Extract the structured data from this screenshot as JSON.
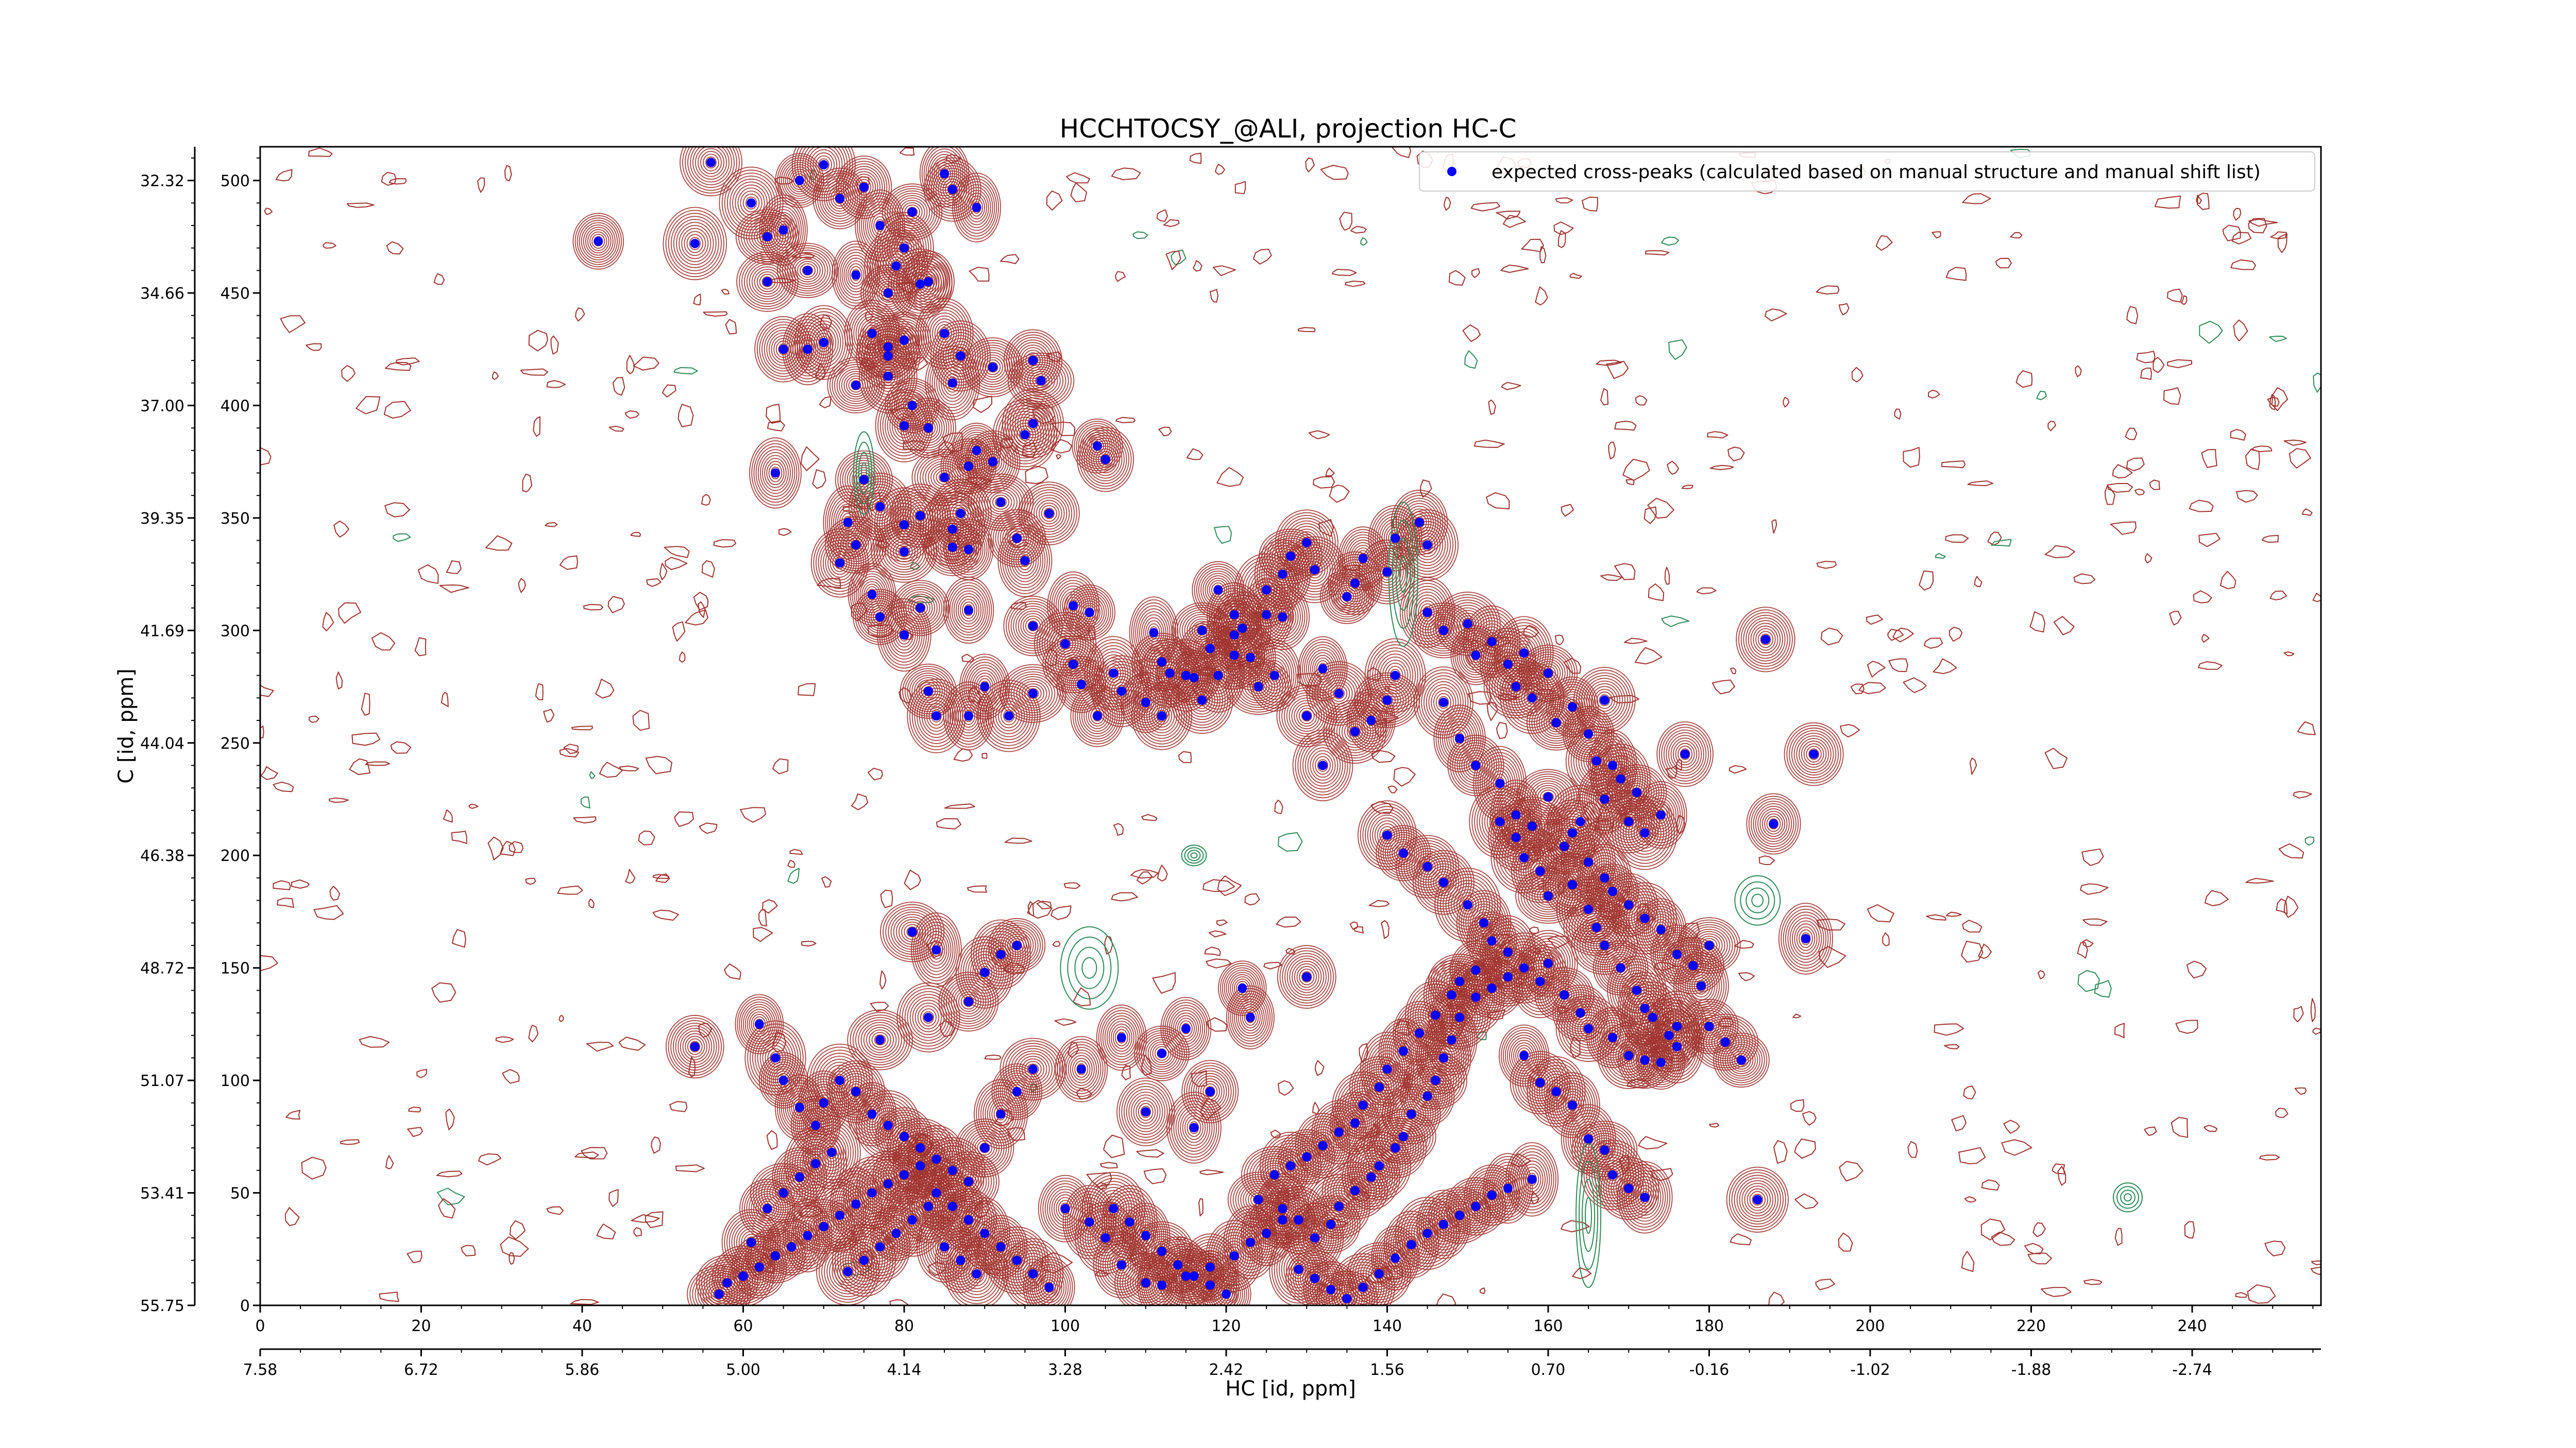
{
  "chart_data": {
    "type": "contour",
    "title": "HCCHTOCSY_@ALI, projection HC-C",
    "xlabel": "HC [id, ppm]",
    "ylabel": "C [id, ppm]",
    "x_index_range": [
      0,
      256
    ],
    "y_index_range": [
      0,
      515
    ],
    "x_index_ticks": [
      0,
      20,
      40,
      60,
      80,
      100,
      120,
      140,
      160,
      180,
      200,
      220,
      240
    ],
    "y_index_ticks": [
      0,
      50,
      100,
      150,
      200,
      250,
      300,
      350,
      400,
      450,
      500
    ],
    "x_ppm_ticks": [
      "7.58",
      "6.72",
      "5.86",
      "5.00",
      "4.14",
      "3.28",
      "2.42",
      "1.56",
      "0.70",
      "-0.16",
      "-1.02",
      "-1.88",
      "-2.74"
    ],
    "y_ppm_ticks": [
      "55.75",
      "53.41",
      "51.07",
      "48.72",
      "46.38",
      "44.04",
      "41.69",
      "39.35",
      "37.00",
      "34.66",
      "32.32"
    ],
    "legend": {
      "position": "top-right",
      "entries": [
        {
          "label": "expected cross-peaks (calculated based on manual structure and manual shift list)",
          "color": "#0000ff",
          "marker": "circle"
        }
      ]
    },
    "colors": {
      "positive_contour": "#a0322d",
      "negative_contour": "#2e8b57",
      "peak_marker": "#0000ff"
    },
    "peaks": [
      [
        42,
        473
      ],
      [
        54,
        472
      ],
      [
        56,
        508
      ],
      [
        61,
        490
      ],
      [
        63,
        475
      ],
      [
        65,
        478
      ],
      [
        67,
        500
      ],
      [
        70,
        507
      ],
      [
        72,
        492
      ],
      [
        75,
        497
      ],
      [
        77,
        480
      ],
      [
        79,
        462
      ],
      [
        80,
        470
      ],
      [
        81,
        486
      ],
      [
        85,
        503
      ],
      [
        86,
        496
      ],
      [
        89,
        488
      ],
      [
        63,
        455
      ],
      [
        68,
        460
      ],
      [
        74,
        458
      ],
      [
        78,
        450
      ],
      [
        82,
        454
      ],
      [
        65,
        425
      ],
      [
        68,
        425
      ],
      [
        70,
        428
      ],
      [
        76,
        432
      ],
      [
        78,
        422
      ],
      [
        78,
        426
      ],
      [
        80,
        429
      ],
      [
        83,
        455
      ],
      [
        85,
        432
      ],
      [
        87,
        422
      ],
      [
        74,
        409
      ],
      [
        78,
        413
      ],
      [
        81,
        400
      ],
      [
        83,
        390
      ],
      [
        86,
        410
      ],
      [
        91,
        417
      ],
      [
        96,
        420
      ],
      [
        97,
        411
      ],
      [
        80,
        391
      ],
      [
        88,
        373
      ],
      [
        89,
        380
      ],
      [
        91,
        375
      ],
      [
        95,
        387
      ],
      [
        96,
        392
      ],
      [
        104,
        382
      ],
      [
        105,
        376
      ],
      [
        64,
        370
      ],
      [
        75,
        367
      ],
      [
        77,
        355
      ],
      [
        80,
        347
      ],
      [
        82,
        351
      ],
      [
        86,
        345
      ],
      [
        87,
        352
      ],
      [
        73,
        348
      ],
      [
        85,
        368
      ],
      [
        92,
        357
      ],
      [
        95,
        331
      ],
      [
        80,
        335
      ],
      [
        86,
        337
      ],
      [
        88,
        336
      ],
      [
        94,
        341
      ],
      [
        98,
        352
      ],
      [
        72,
        330
      ],
      [
        74,
        338
      ],
      [
        76,
        316
      ],
      [
        77,
        306
      ],
      [
        80,
        298
      ],
      [
        82,
        310
      ],
      [
        88,
        309
      ],
      [
        96,
        302
      ],
      [
        101,
        311
      ],
      [
        103,
        308
      ],
      [
        106,
        281
      ],
      [
        111,
        299
      ],
      [
        112,
        286
      ],
      [
        113,
        281
      ],
      [
        117,
        300
      ],
      [
        118,
        292
      ],
      [
        121,
        298
      ],
      [
        123,
        288
      ],
      [
        124,
        275
      ],
      [
        126,
        280
      ],
      [
        130,
        262
      ],
      [
        132,
        240
      ],
      [
        119,
        318
      ],
      [
        121,
        307
      ],
      [
        122,
        301
      ],
      [
        125,
        307
      ],
      [
        127,
        306
      ],
      [
        132,
        283
      ],
      [
        134,
        272
      ],
      [
        136,
        255
      ],
      [
        138,
        260
      ],
      [
        140,
        269
      ],
      [
        141,
        280
      ],
      [
        83,
        273
      ],
      [
        84,
        262
      ],
      [
        88,
        262
      ],
      [
        90,
        275
      ],
      [
        93,
        262
      ],
      [
        96,
        272
      ],
      [
        100,
        294
      ],
      [
        101,
        285
      ],
      [
        102,
        276
      ],
      [
        104,
        262
      ],
      [
        107,
        273
      ],
      [
        110,
        268
      ],
      [
        112,
        262
      ],
      [
        115,
        280
      ],
      [
        116,
        279
      ],
      [
        117,
        269
      ],
      [
        119,
        280
      ],
      [
        121,
        289
      ],
      [
        125,
        318
      ],
      [
        127,
        325
      ],
      [
        128,
        333
      ],
      [
        130,
        339
      ],
      [
        131,
        327
      ],
      [
        135,
        315
      ],
      [
        136,
        321
      ],
      [
        137,
        332
      ],
      [
        140,
        326
      ],
      [
        141,
        341
      ],
      [
        144,
        348
      ],
      [
        145,
        338
      ],
      [
        145,
        308
      ],
      [
        147,
        300
      ],
      [
        150,
        303
      ],
      [
        151,
        289
      ],
      [
        153,
        295
      ],
      [
        155,
        285
      ],
      [
        156,
        275
      ],
      [
        157,
        290
      ],
      [
        158,
        270
      ],
      [
        160,
        281
      ],
      [
        161,
        259
      ],
      [
        163,
        266
      ],
      [
        165,
        254
      ],
      [
        166,
        242
      ],
      [
        167,
        269
      ],
      [
        167,
        225
      ],
      [
        168,
        240
      ],
      [
        169,
        234
      ],
      [
        170,
        215
      ],
      [
        171,
        228
      ],
      [
        172,
        210
      ],
      [
        174,
        218
      ],
      [
        177,
        245
      ],
      [
        147,
        268
      ],
      [
        149,
        252
      ],
      [
        151,
        240
      ],
      [
        154,
        232
      ],
      [
        156,
        218
      ],
      [
        158,
        213
      ],
      [
        160,
        226
      ],
      [
        163,
        210
      ],
      [
        140,
        209
      ],
      [
        142,
        201
      ],
      [
        145,
        195
      ],
      [
        147,
        188
      ],
      [
        150,
        178
      ],
      [
        152,
        170
      ],
      [
        153,
        162
      ],
      [
        155,
        157
      ],
      [
        157,
        150
      ],
      [
        159,
        144
      ],
      [
        160,
        152
      ],
      [
        162,
        138
      ],
      [
        164,
        130
      ],
      [
        165,
        123
      ],
      [
        168,
        119
      ],
      [
        170,
        111
      ],
      [
        172,
        109
      ],
      [
        174,
        108
      ],
      [
        176,
        124
      ],
      [
        178,
        151
      ],
      [
        180,
        160
      ],
      [
        160,
        182
      ],
      [
        163,
        187
      ],
      [
        165,
        176
      ],
      [
        166,
        168
      ],
      [
        167,
        160
      ],
      [
        169,
        150
      ],
      [
        171,
        140
      ],
      [
        172,
        132
      ],
      [
        173,
        128
      ],
      [
        175,
        120
      ],
      [
        176,
        115
      ],
      [
        154,
        215
      ],
      [
        156,
        208
      ],
      [
        157,
        199
      ],
      [
        159,
        193
      ],
      [
        162,
        204
      ],
      [
        164,
        215
      ],
      [
        165,
        197
      ],
      [
        167,
        190
      ],
      [
        168,
        184
      ],
      [
        170,
        178
      ],
      [
        172,
        172
      ],
      [
        174,
        167
      ],
      [
        176,
        156
      ],
      [
        179,
        142
      ],
      [
        180,
        124
      ],
      [
        182,
        117
      ],
      [
        184,
        109
      ],
      [
        188,
        214
      ],
      [
        187,
        296
      ],
      [
        193,
        245
      ],
      [
        192,
        163
      ],
      [
        186,
        47
      ],
      [
        127,
        43
      ],
      [
        129,
        38
      ],
      [
        131,
        30
      ],
      [
        133,
        36
      ],
      [
        134,
        44
      ],
      [
        136,
        51
      ],
      [
        138,
        57
      ],
      [
        139,
        62
      ],
      [
        141,
        70
      ],
      [
        142,
        75
      ],
      [
        143,
        85
      ],
      [
        145,
        93
      ],
      [
        146,
        100
      ],
      [
        147,
        110
      ],
      [
        148,
        118
      ],
      [
        149,
        128
      ],
      [
        151,
        137
      ],
      [
        153,
        141
      ],
      [
        155,
        146
      ],
      [
        157,
        111
      ],
      [
        159,
        99
      ],
      [
        161,
        95
      ],
      [
        163,
        89
      ],
      [
        165,
        74
      ],
      [
        167,
        69
      ],
      [
        168,
        58
      ],
      [
        170,
        52
      ],
      [
        172,
        48
      ],
      [
        124,
        47
      ],
      [
        126,
        58
      ],
      [
        128,
        62
      ],
      [
        130,
        66
      ],
      [
        132,
        71
      ],
      [
        134,
        77
      ],
      [
        136,
        81
      ],
      [
        137,
        89
      ],
      [
        139,
        97
      ],
      [
        140,
        105
      ],
      [
        142,
        113
      ],
      [
        144,
        121
      ],
      [
        146,
        129
      ],
      [
        148,
        138
      ],
      [
        149,
        144
      ],
      [
        151,
        149
      ],
      [
        112,
        9
      ],
      [
        115,
        13
      ],
      [
        118,
        17
      ],
      [
        121,
        22
      ],
      [
        123,
        28
      ],
      [
        125,
        32
      ],
      [
        127,
        38
      ],
      [
        129,
        16
      ],
      [
        131,
        12
      ],
      [
        133,
        7
      ],
      [
        135,
        3
      ],
      [
        137,
        8
      ],
      [
        139,
        14
      ],
      [
        141,
        21
      ],
      [
        143,
        27
      ],
      [
        145,
        32
      ],
      [
        147,
        36
      ],
      [
        149,
        40
      ],
      [
        151,
        44
      ],
      [
        153,
        49
      ],
      [
        155,
        52
      ],
      [
        158,
        56
      ],
      [
        106,
        43
      ],
      [
        108,
        37
      ],
      [
        110,
        31
      ],
      [
        112,
        24
      ],
      [
        114,
        18
      ],
      [
        116,
        13
      ],
      [
        118,
        9
      ],
      [
        120,
        5
      ],
      [
        100,
        43
      ],
      [
        103,
        37
      ],
      [
        105,
        30
      ],
      [
        107,
        18
      ],
      [
        110,
        10
      ],
      [
        122,
        141
      ],
      [
        130,
        146
      ],
      [
        107,
        119
      ],
      [
        102,
        105
      ],
      [
        110,
        86
      ],
      [
        116,
        79
      ],
      [
        118,
        95
      ],
      [
        112,
        112
      ],
      [
        115,
        123
      ],
      [
        123,
        128
      ],
      [
        54,
        115
      ],
      [
        62,
        125
      ],
      [
        64,
        110
      ],
      [
        65,
        100
      ],
      [
        67,
        88
      ],
      [
        69,
        80
      ],
      [
        70,
        90
      ],
      [
        72,
        100
      ],
      [
        74,
        95
      ],
      [
        76,
        85
      ],
      [
        78,
        80
      ],
      [
        80,
        75
      ],
      [
        82,
        70
      ],
      [
        84,
        65
      ],
      [
        86,
        60
      ],
      [
        88,
        55
      ],
      [
        90,
        70
      ],
      [
        92,
        85
      ],
      [
        94,
        95
      ],
      [
        96,
        105
      ],
      [
        77,
        118
      ],
      [
        83,
        128
      ],
      [
        88,
        135
      ],
      [
        90,
        148
      ],
      [
        92,
        156
      ],
      [
        94,
        160
      ],
      [
        81,
        166
      ],
      [
        84,
        158
      ],
      [
        57,
        5
      ],
      [
        58,
        10
      ],
      [
        60,
        13
      ],
      [
        62,
        17
      ],
      [
        64,
        22
      ],
      [
        66,
        26
      ],
      [
        68,
        31
      ],
      [
        70,
        35
      ],
      [
        72,
        40
      ],
      [
        74,
        45
      ],
      [
        76,
        50
      ],
      [
        78,
        54
      ],
      [
        80,
        58
      ],
      [
        82,
        62
      ],
      [
        84,
        50
      ],
      [
        86,
        44
      ],
      [
        88,
        38
      ],
      [
        90,
        32
      ],
      [
        92,
        26
      ],
      [
        94,
        20
      ],
      [
        96,
        14
      ],
      [
        98,
        8
      ],
      [
        61,
        28
      ],
      [
        63,
        43
      ],
      [
        65,
        50
      ],
      [
        67,
        57
      ],
      [
        69,
        63
      ],
      [
        71,
        68
      ],
      [
        73,
        15
      ],
      [
        75,
        20
      ],
      [
        77,
        26
      ],
      [
        79,
        32
      ],
      [
        81,
        38
      ],
      [
        83,
        44
      ],
      [
        85,
        26
      ],
      [
        87,
        20
      ],
      [
        89,
        14
      ]
    ]
  }
}
